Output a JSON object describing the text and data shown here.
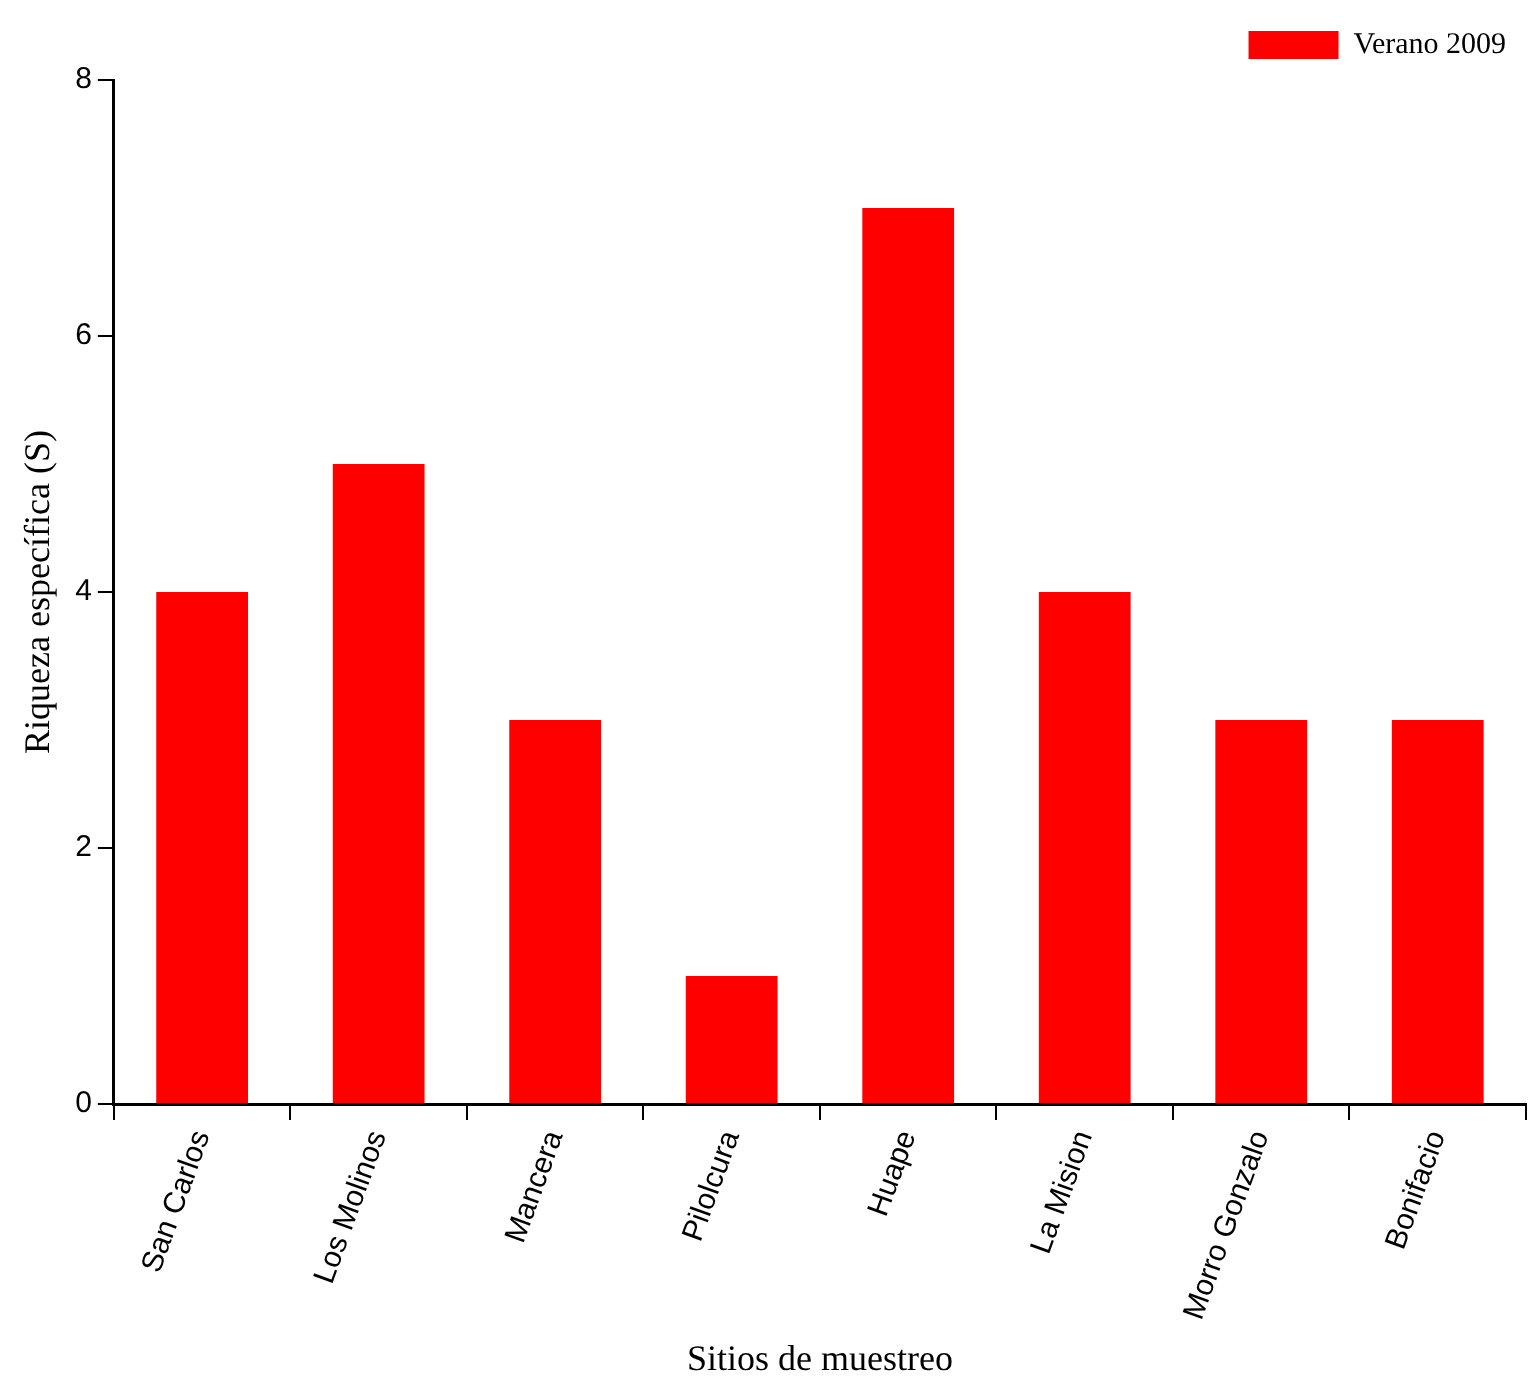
{
  "chart_data": {
    "type": "bar",
    "xlabel": "Sitios de muestreo",
    "ylabel": "Riqueza específica (S)",
    "categories": [
      "San Carlos",
      "Los Molinos",
      "Mancera",
      "Pilolcura",
      "Huape",
      "La Mision",
      "Morro Gonzalo",
      "Bonifacio"
    ],
    "series": [
      {
        "name": "Verano 2009",
        "color": "#ff0000",
        "values": [
          4,
          5,
          3,
          1,
          7,
          4,
          3,
          3
        ]
      }
    ],
    "ylim": [
      0,
      8
    ],
    "yticks": [
      0,
      2,
      4,
      6,
      8
    ],
    "grid": false,
    "legend": "top right"
  }
}
